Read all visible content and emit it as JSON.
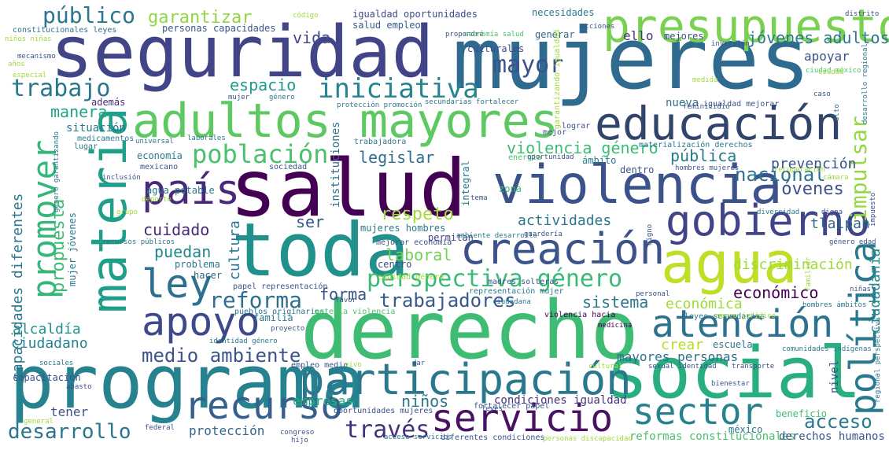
{
  "words": [
    {
      "text": "seguridad",
      "color": "#414487"
    },
    {
      "text": "mujeres",
      "color": "#2f6b8e"
    },
    {
      "text": "salud",
      "color": "#440154"
    },
    {
      "text": "derecho",
      "color": "#3fbc73"
    },
    {
      "text": "toda",
      "color": "#21918c"
    },
    {
      "text": "programa",
      "color": "#26828e"
    },
    {
      "text": "social",
      "color": "#29af7f"
    },
    {
      "text": "violencia",
      "color": "#3b528b"
    },
    {
      "text": "presupuesto",
      "color": "#7ad151"
    },
    {
      "text": "adultos mayores",
      "color": "#5ec962"
    },
    {
      "text": "educación",
      "color": "#31446b"
    },
    {
      "text": "materia",
      "color": "#1f9e89"
    },
    {
      "text": "agua",
      "color": "#bddf26"
    },
    {
      "text": "participación",
      "color": "#2a788e"
    },
    {
      "text": "recurso",
      "color": "#355f8d"
    },
    {
      "text": "gobierno",
      "color": "#414487"
    },
    {
      "text": "creación",
      "color": "#3b528b"
    },
    {
      "text": "país",
      "color": "#482878"
    },
    {
      "text": "apoyo",
      "color": "#3e4989"
    },
    {
      "text": "ley",
      "color": "#2d708e"
    },
    {
      "text": "servicio",
      "color": "#471164"
    },
    {
      "text": "sector",
      "color": "#26828e"
    },
    {
      "text": "atención",
      "color": "#2c728e"
    },
    {
      "text": "política",
      "color": "#2a788e"
    },
    {
      "text": "promover",
      "color": "#35b779"
    },
    {
      "text": "iniciativa",
      "color": "#25858e"
    },
    {
      "text": "población",
      "color": "#4ac16d"
    },
    {
      "text": "perspectiva género",
      "color": "#3aba76"
    },
    {
      "text": "reforma",
      "color": "#2e6e8e"
    },
    {
      "text": "trabajo",
      "color": "#2a788e"
    },
    {
      "text": "público",
      "color": "#2a788e"
    },
    {
      "text": "garantizar",
      "color": "#8fd744"
    },
    {
      "text": "mayor",
      "color": "#3b528b"
    },
    {
      "text": "impulsar",
      "color": "#95d840"
    },
    {
      "text": "desarrollo",
      "color": "#2b758e"
    },
    {
      "text": "través",
      "color": "#46307e"
    },
    {
      "text": "acceso",
      "color": "#2a788e"
    },
    {
      "text": "medio ambiente",
      "color": "#3b528b"
    },
    {
      "text": "trabajadores",
      "color": "#38598c"
    },
    {
      "text": "respeto",
      "color": "#a2da37"
    },
    {
      "text": "nacional",
      "color": "#2c728e"
    },
    {
      "text": "jóvenes",
      "color": "#3b528b"
    },
    {
      "text": "propuesta",
      "color": "#3fbc73"
    },
    {
      "text": "capacidades diferentes",
      "color": "#2a788e"
    },
    {
      "text": "violencia género",
      "color": "#3dbc74"
    },
    {
      "text": "legislar",
      "color": "#2d708e"
    },
    {
      "text": "espacio",
      "color": "#1e9b8a"
    },
    {
      "text": "manera",
      "color": "#21a585"
    },
    {
      "text": "vida",
      "color": "#3f4788"
    },
    {
      "text": "jóvenes adultos",
      "color": "#2a788e"
    },
    {
      "text": "pública",
      "color": "#2a788e"
    },
    {
      "text": "cuidado",
      "color": "#472a7a"
    },
    {
      "text": "puedan",
      "color": "#24868e"
    },
    {
      "text": "cultura",
      "color": "#2b758e"
    },
    {
      "text": "ser",
      "color": "#39568c"
    },
    {
      "text": "laboral",
      "color": "#73d056"
    },
    {
      "text": "forma",
      "color": "#39568c"
    },
    {
      "text": "sistema",
      "color": "#2a788e"
    },
    {
      "text": "económico",
      "color": "#440154"
    },
    {
      "text": "económica",
      "color": "#9fda3a"
    },
    {
      "text": "actividades",
      "color": "#2a788e"
    },
    {
      "text": "discriminación",
      "color": "#a0da39"
    },
    {
      "text": "prevención",
      "color": "#3b528b"
    },
    {
      "text": "tlalpan",
      "color": "#2e6e8e"
    },
    {
      "text": "ciudadanía",
      "color": "#238a8d"
    },
    {
      "text": "alcaldía",
      "color": "#21918c"
    },
    {
      "text": "ciudadano",
      "color": "#25848e"
    },
    {
      "text": "crear",
      "color": "#b5de2b"
    },
    {
      "text": "mayores personas",
      "color": "#2d708e"
    },
    {
      "text": "empresas",
      "color": "#29af7f"
    },
    {
      "text": "niños",
      "color": "#2a788e"
    },
    {
      "text": "condiciones igualdad",
      "color": "#46327e"
    },
    {
      "text": "tener",
      "color": "#3b528b"
    },
    {
      "text": "protección",
      "color": "#31688e"
    },
    {
      "text": "reformas constitucionales",
      "color": "#4ac16d"
    },
    {
      "text": "derechos humanos",
      "color": "#39568c"
    },
    {
      "text": "apoyar",
      "color": "#3b528b"
    },
    {
      "text": "nueva",
      "color": "#2c728e"
    },
    {
      "text": "ello",
      "color": "#46337f"
    },
    {
      "text": "mejores",
      "color": "#3e4989"
    },
    {
      "text": "situación",
      "color": "#2a788e"
    },
    {
      "text": "además",
      "color": "#482878"
    },
    {
      "text": "igualdad oportunidades",
      "color": "#3e4a89"
    },
    {
      "text": "salud empleo",
      "color": "#365c8d"
    },
    {
      "text": "necesidades",
      "color": "#2a788e"
    },
    {
      "text": "culturales",
      "color": "#3e4a89"
    },
    {
      "text": "generar",
      "color": "#31688e"
    },
    {
      "text": "personas capacidades",
      "color": "#39568c"
    },
    {
      "text": "constitucionales leyes",
      "color": "#2c728e"
    },
    {
      "text": "niños niñas",
      "color": "#a0da39"
    },
    {
      "text": "economía",
      "color": "#2a788e"
    },
    {
      "text": "escuela",
      "color": "#2b758e"
    },
    {
      "text": "familia",
      "color": "#2a788e"
    },
    {
      "text": "capacitación",
      "color": "#3b528b"
    },
    {
      "text": "hacer",
      "color": "#31688e"
    },
    {
      "text": "problema",
      "color": "#2a788e"
    },
    {
      "text": "centro",
      "color": "#3e4989"
    },
    {
      "text": "permitan",
      "color": "#414487"
    },
    {
      "text": "mujeres hombres",
      "color": "#2a788e"
    },
    {
      "text": "instituciones",
      "color": "#2d708e"
    },
    {
      "text": "integral",
      "color": "#2a788e"
    },
    {
      "text": "zona",
      "color": "#3dbc74"
    },
    {
      "text": "ámbito",
      "color": "#2a788e"
    },
    {
      "text": "dentro",
      "color": "#3b528b"
    },
    {
      "text": "mujer jóvenes",
      "color": "#2a788e"
    },
    {
      "text": "nivel",
      "color": "#3b528b"
    },
    {
      "text": "beneficio",
      "color": "#3fbc73"
    },
    {
      "text": "méxico",
      "color": "#2a788e"
    },
    {
      "text": "agua potable",
      "color": "#2a788e"
    },
    {
      "text": "pueblos originarios",
      "color": "#2a788e"
    },
    {
      "text": "materia violencia",
      "color": "#4ac16d"
    },
    {
      "text": "violencia hacia",
      "color": "#440154"
    },
    {
      "text": "medicina",
      "color": "#440154"
    },
    {
      "text": "leyes secundarias",
      "color": "#2a788e"
    },
    {
      "text": "fortalecer papel",
      "color": "#3b528b"
    },
    {
      "text": "empleo medio",
      "color": "#3b528b"
    },
    {
      "text": "oportunidades mujeres",
      "color": "#3b528b"
    },
    {
      "text": "diferentes condiciones",
      "color": "#3b528b"
    },
    {
      "text": "personas discapacidad",
      "color": "#a0da39"
    },
    {
      "text": "igualdad mejorar",
      "color": "#3b528b"
    },
    {
      "text": "mejorar economía",
      "color": "#3b528b"
    },
    {
      "text": "equidad género",
      "color": "#a0da39"
    },
    {
      "text": "representación mujer",
      "color": "#2a788e"
    },
    {
      "text": "madres solteras",
      "color": "#3b528b"
    },
    {
      "text": "papel representación",
      "color": "#3b528b"
    },
    {
      "text": "identidad género",
      "color": "#2a788e"
    },
    {
      "text": "medicamentos",
      "color": "#2a788e"
    },
    {
      "text": "universal",
      "color": "#2a788e"
    },
    {
      "text": "laborales",
      "color": "#2a788e"
    },
    {
      "text": "trabajadora",
      "color": "#2a788e"
    },
    {
      "text": "lugar",
      "color": "#2a788e"
    },
    {
      "text": "mexicano",
      "color": "#3b528b"
    },
    {
      "text": "sociedad",
      "color": "#3b528b"
    },
    {
      "text": "garantizando igualdad",
      "color": "#a0da39"
    },
    {
      "text": "lograr",
      "color": "#3b528b"
    },
    {
      "text": "mejor",
      "color": "#3b528b"
    },
    {
      "text": "materialización derechos",
      "color": "#2a788e"
    },
    {
      "text": "hombres mujeres",
      "color": "#3b528b"
    },
    {
      "text": "energía",
      "color": "#4ac16d"
    },
    {
      "text": "oportunidad",
      "color": "#3b528b"
    },
    {
      "text": "código",
      "color": "#a0da39"
    },
    {
      "text": "acciones",
      "color": "#3b528b"
    },
    {
      "text": "propondré",
      "color": "#3b528b"
    },
    {
      "text": "economía salud",
      "color": "#4ac16d"
    },
    {
      "text": "distrito",
      "color": "#3b528b"
    },
    {
      "text": "inversión",
      "color": "#3b528b"
    },
    {
      "text": "mecanismo",
      "color": "#3b528b"
    },
    {
      "text": "especial",
      "color": "#a0da39"
    },
    {
      "text": "años",
      "color": "#a0da39"
    },
    {
      "text": "mujer",
      "color": "#3b528b"
    },
    {
      "text": "género",
      "color": "#2a788e"
    },
    {
      "text": "protección promoción",
      "color": "#2a788e"
    },
    {
      "text": "secundarias fortalecer",
      "color": "#2a788e"
    },
    {
      "text": "feminicidio",
      "color": "#3b528b"
    },
    {
      "text": "medida",
      "color": "#a0da39"
    },
    {
      "text": "ciudad méxico",
      "color": "#4ac16d"
    },
    {
      "text": "caso",
      "color": "#3b528b"
    },
    {
      "text": "desarrollo regional",
      "color": "#2a788e"
    },
    {
      "text": "inclusión",
      "color": "#3b528b"
    },
    {
      "text": "género garantizando",
      "color": "#2a788e"
    },
    {
      "text": "deporte",
      "color": "#a0da39"
    },
    {
      "text": "grupo",
      "color": "#a0da39"
    },
    {
      "text": "tema",
      "color": "#3b528b"
    },
    {
      "text": "recuperación",
      "color": "#a0da39"
    },
    {
      "text": "cámara",
      "color": "#a0da39"
    },
    {
      "text": "digna",
      "color": "#3b528b"
    },
    {
      "text": "diversidad",
      "color": "#2a788e"
    },
    {
      "text": "impuesto",
      "color": "#3b528b"
    },
    {
      "text": "guardería",
      "color": "#3b528b"
    },
    {
      "text": "ambiente desarrollo",
      "color": "#2a788e"
    },
    {
      "text": "digno",
      "color": "#3b528b"
    },
    {
      "text": "género edad",
      "color": "#3b528b"
    },
    {
      "text": "familiar",
      "color": "#a0da39"
    },
    {
      "text": "niñas",
      "color": "#3b528b"
    },
    {
      "text": "hombres ámbitos",
      "color": "#2a788e"
    },
    {
      "text": "marco jurídico",
      "color": "#a0da39"
    },
    {
      "text": "regional perspectiva",
      "color": "#2a788e"
    },
    {
      "text": "sexual identidad",
      "color": "#3b528b"
    },
    {
      "text": "transporte",
      "color": "#3b528b"
    },
    {
      "text": "comunidades indígenas",
      "color": "#2a788e"
    },
    {
      "text": "bienestar",
      "color": "#3b528b"
    },
    {
      "text": "recursos públicos",
      "color": "#2a788e"
    },
    {
      "text": "ciudadana",
      "color": "#2a788e"
    },
    {
      "text": "proyecto",
      "color": "#3b528b"
    },
    {
      "text": "favor",
      "color": "#3b528b"
    },
    {
      "text": "vivo",
      "color": "#a0da39"
    },
    {
      "text": "dar",
      "color": "#3b528b"
    },
    {
      "text": "sociales",
      "color": "#2a788e"
    },
    {
      "text": "abasto",
      "color": "#3b528b"
    },
    {
      "text": "general",
      "color": "#a0da39"
    },
    {
      "text": "federal",
      "color": "#3b528b"
    },
    {
      "text": "congreso",
      "color": "#3b528b"
    },
    {
      "text": "hijo",
      "color": "#3b528b"
    },
    {
      "text": "acceso servicios",
      "color": "#2a788e"
    },
    {
      "text": "leyes",
      "color": "#3b528b"
    },
    {
      "text": "cultural",
      "color": "#a0da39"
    },
    {
      "text": "personal",
      "color": "#3b528b"
    },
    {
      "text": "alto",
      "color": "#2a788e"
    },
    {
      "text": "ciudad",
      "color": "#a0da39"
    }
  ]
}
